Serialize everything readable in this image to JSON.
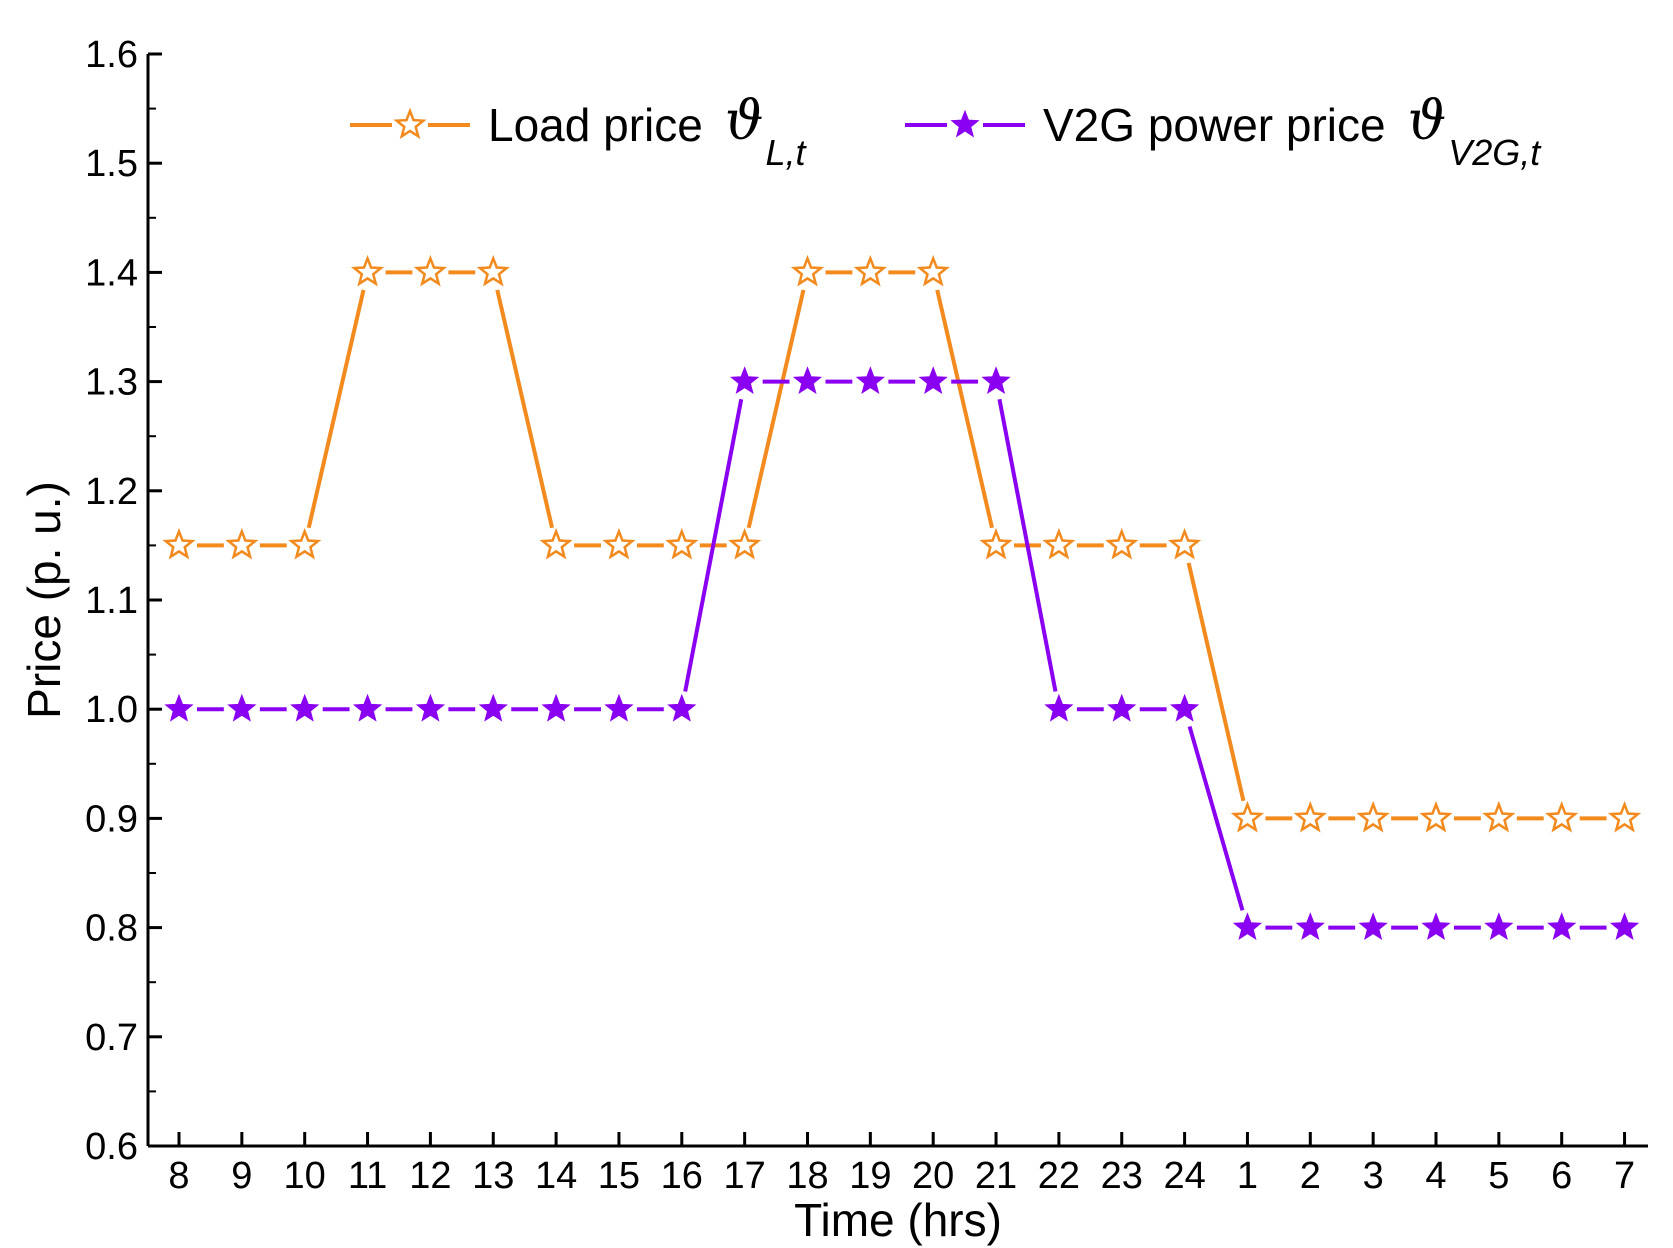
{
  "chart_data": {
    "type": "line",
    "title": "",
    "xlabel": "Time (hrs)",
    "ylabel": "Price (p. u.)",
    "ylim": [
      0.6,
      1.6
    ],
    "yticks": [
      "0.6",
      "0.7",
      "0.8",
      "0.9",
      "1.0",
      "1.1",
      "1.2",
      "1.3",
      "1.4",
      "1.5",
      "1.6"
    ],
    "categories": [
      "8",
      "9",
      "10",
      "11",
      "12",
      "13",
      "14",
      "15",
      "16",
      "17",
      "18",
      "19",
      "20",
      "21",
      "22",
      "23",
      "24",
      "1",
      "2",
      "3",
      "4",
      "5",
      "6",
      "7"
    ],
    "legend_position": "top-right",
    "series": [
      {
        "name": "Load price",
        "symbol": "ϑ",
        "subscript": "L,t",
        "color": "#f28a1e",
        "marker": "hollow-star",
        "values": [
          1.15,
          1.15,
          1.15,
          1.4,
          1.4,
          1.4,
          1.15,
          1.15,
          1.15,
          1.15,
          1.4,
          1.4,
          1.4,
          1.15,
          1.15,
          1.15,
          1.15,
          0.9,
          0.9,
          0.9,
          0.9,
          0.9,
          0.9,
          0.9
        ]
      },
      {
        "name": "V2G power price",
        "symbol": "ϑ",
        "subscript": "V2G,t",
        "color": "#8a00f0",
        "marker": "filled-star",
        "values": [
          1.0,
          1.0,
          1.0,
          1.0,
          1.0,
          1.0,
          1.0,
          1.0,
          1.0,
          1.3,
          1.3,
          1.3,
          1.3,
          1.3,
          1.0,
          1.0,
          1.0,
          0.8,
          0.8,
          0.8,
          0.8,
          0.8,
          0.8,
          0.8
        ]
      }
    ]
  }
}
